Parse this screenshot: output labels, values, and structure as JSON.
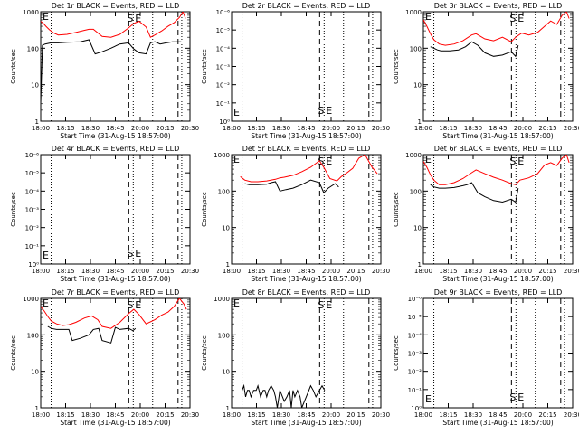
{
  "chart_data": [
    {
      "type": "line",
      "title": "Det 1r BLACK = Events, RED = LLD",
      "xlabel": "Start Time (31-Aug-15 18:57:00)",
      "ylabel": "Counts/sec",
      "y_scale": "log",
      "ylim": [
        1,
        1000
      ],
      "y_ticks": [
        "1",
        "10",
        "100",
        "1000"
      ],
      "x_ticks": [
        "18:00",
        "18:15",
        "18:30",
        "18:45",
        "20:00",
        "20:15",
        "20:30"
      ],
      "markers": {
        "E_left": "E",
        "S": "S",
        "E": "E"
      },
      "series": [
        {
          "color": "#000000",
          "x": [
            19.0,
            19.02,
            19.05,
            19.08,
            19.12,
            19.15,
            19.2,
            19.3,
            19.45,
            19.55,
            19.62,
            19.7,
            19.8,
            19.9,
            20.0,
            20.06,
            20.12,
            20.2,
            20.25,
            20.3,
            20.36,
            20.43,
            20.5,
            20.6
          ],
          "y": [
            3,
            120,
            130,
            135,
            140,
            140,
            140,
            145,
            150,
            170,
            70,
            80,
            100,
            130,
            140,
            95,
            75,
            70,
            140,
            150,
            130,
            140,
            150,
            150
          ]
        },
        {
          "color": "#ff0000",
          "x": [
            19.0,
            19.03,
            19.06,
            19.1,
            19.15,
            19.2,
            19.3,
            19.4,
            19.5,
            19.55,
            19.6,
            19.7,
            19.8,
            19.9,
            20.0,
            20.06,
            20.12,
            20.2,
            20.25,
            20.3,
            20.38,
            20.45,
            20.52,
            20.58,
            20.62,
            20.65
          ],
          "y": [
            550,
            480,
            400,
            320,
            260,
            230,
            240,
            270,
            310,
            330,
            330,
            210,
            200,
            240,
            360,
            480,
            550,
            380,
            200,
            230,
            300,
            400,
            500,
            700,
            1000,
            650
          ]
        }
      ]
    },
    {
      "type": "line",
      "title": "Det 2r BLACK = Events, RED = LLD",
      "xlabel": "Start Time (31-Aug-15 18:57:00)",
      "ylabel": "Counts/sec",
      "y_scale": "log",
      "ylim": [
        1,
        1e-06
      ],
      "y_ticks": [
        "10⁰",
        "10⁻¹",
        "10⁻²",
        "10⁻³",
        "10⁻⁴",
        "10⁻⁵",
        "10⁻⁶"
      ],
      "x_ticks": [
        "18:00",
        "18:15",
        "18:30",
        "18:45",
        "20:00",
        "20:15",
        "20:30"
      ],
      "markers": {
        "E_left": "E",
        "S": "S",
        "E": "E"
      },
      "series": []
    },
    {
      "type": "line",
      "title": "Det 3r BLACK = Events, RED = LLD",
      "xlabel": "Start Time (31-Aug-15 18:57:00)",
      "ylabel": "Counts/sec",
      "y_scale": "log",
      "ylim": [
        1,
        1000
      ],
      "y_ticks": [
        "1",
        "10",
        "100",
        "1000"
      ],
      "x_ticks": [
        "18:00",
        "18:15",
        "18:30",
        "18:45",
        "20:00",
        "20:15",
        "20:30"
      ],
      "markers": {
        "E_left": "E",
        "S": "S",
        "E": "E"
      },
      "series": [
        {
          "color": "#000000",
          "x": [
            19.08,
            19.12,
            19.16,
            19.2,
            19.3,
            19.4,
            19.48,
            19.55,
            19.62,
            19.7,
            19.8,
            19.9,
            20.0,
            20.05,
            20.08
          ],
          "y": [
            110,
            100,
            90,
            85,
            85,
            90,
            110,
            150,
            120,
            75,
            60,
            65,
            80,
            60,
            120
          ]
        },
        {
          "color": "#ff0000",
          "x": [
            19.0,
            19.04,
            19.08,
            19.12,
            19.18,
            19.25,
            19.35,
            19.45,
            19.55,
            19.6,
            19.7,
            19.8,
            19.9,
            20.0,
            20.05,
            20.12,
            20.2,
            20.3,
            20.38,
            20.45,
            20.52,
            20.58,
            20.63,
            20.66
          ],
          "y": [
            600,
            400,
            250,
            170,
            130,
            120,
            130,
            160,
            230,
            250,
            180,
            160,
            200,
            150,
            200,
            260,
            230,
            270,
            400,
            560,
            450,
            800,
            1000,
            650
          ]
        }
      ]
    },
    {
      "type": "line",
      "title": "Det 4r BLACK = Events, RED = LLD",
      "xlabel": "Start Time (31-Aug-15 18:57:00)",
      "ylabel": "Counts/sec",
      "y_scale": "log",
      "ylim": [
        1,
        1e-06
      ],
      "y_ticks": [
        "10⁰",
        "10⁻¹",
        "10⁻²",
        "10⁻³",
        "10⁻⁴",
        "10⁻⁵",
        "10⁻⁶"
      ],
      "x_ticks": [
        "18:00",
        "18:15",
        "18:30",
        "18:45",
        "20:00",
        "20:15",
        "20:30"
      ],
      "markers": {
        "E_left": "E",
        "S": "S",
        "E": "E"
      },
      "series": []
    },
    {
      "type": "line",
      "title": "Det 5r BLACK = Events, RED = LLD",
      "xlabel": "Start Time (31-Aug-15 18:57:00)",
      "ylabel": "Counts/sec",
      "y_scale": "log",
      "ylim": [
        1,
        1000
      ],
      "y_ticks": [
        "1",
        "10",
        "100",
        "1000"
      ],
      "x_ticks": [
        "18:00",
        "18:15",
        "18:30",
        "18:45",
        "20:00",
        "20:15",
        "20:30"
      ],
      "markers": {
        "E_left": "E",
        "S": "S",
        "E": "E"
      },
      "series": [
        {
          "color": "#000000",
          "x": [
            19.15,
            19.2,
            19.3,
            19.4,
            19.45,
            19.5,
            19.55,
            19.62,
            19.7,
            19.8,
            19.9,
            20.0,
            20.05,
            20.1,
            20.18,
            20.22
          ],
          "y": [
            160,
            150,
            150,
            155,
            170,
            180,
            100,
            110,
            120,
            150,
            200,
            170,
            90,
            120,
            160,
            130
          ]
        },
        {
          "color": "#ff0000",
          "x": [
            19.1,
            19.15,
            19.22,
            19.3,
            19.4,
            19.5,
            19.55,
            19.6,
            19.7,
            19.8,
            19.9,
            20.0,
            20.05,
            20.12,
            20.2,
            20.25,
            20.3,
            20.38,
            20.45,
            20.52,
            20.6,
            20.66
          ],
          "y": [
            250,
            200,
            180,
            180,
            190,
            210,
            230,
            240,
            270,
            340,
            450,
            680,
            450,
            220,
            190,
            250,
            300,
            420,
            800,
            1000,
            450,
            300
          ]
        }
      ]
    },
    {
      "type": "line",
      "title": "Det 6r BLACK = Events, RED = LLD",
      "xlabel": "Start Time (31-Aug-15 18:57:00)",
      "ylabel": "Counts/sec",
      "y_scale": "log",
      "ylim": [
        1,
        1000
      ],
      "y_ticks": [
        "1",
        "10",
        "100",
        "1000"
      ],
      "x_ticks": [
        "18:00",
        "18:15",
        "18:30",
        "18:45",
        "20:00",
        "20:15",
        "20:30"
      ],
      "markers": {
        "E_left": "E",
        "S": "S",
        "E": "E"
      },
      "series": [
        {
          "color": "#000000",
          "x": [
            19.08,
            19.12,
            19.18,
            19.25,
            19.35,
            19.45,
            19.5,
            19.55,
            19.62,
            19.7,
            19.8,
            19.9,
            20.0,
            20.05,
            20.08
          ],
          "y": [
            150,
            130,
            120,
            120,
            125,
            140,
            150,
            170,
            90,
            70,
            55,
            50,
            60,
            50,
            120
          ]
        },
        {
          "color": "#ff0000",
          "x": [
            19.0,
            19.04,
            19.08,
            19.12,
            19.18,
            19.25,
            19.35,
            19.45,
            19.55,
            19.6,
            19.7,
            19.8,
            19.9,
            20.0,
            20.05,
            20.1,
            20.2,
            20.3,
            20.38,
            20.45,
            20.52,
            20.58,
            20.63,
            20.66
          ],
          "y": [
            650,
            450,
            280,
            200,
            150,
            150,
            170,
            220,
            320,
            380,
            300,
            240,
            200,
            160,
            150,
            200,
            230,
            300,
            520,
            600,
            500,
            800,
            1000,
            600
          ]
        }
      ]
    },
    {
      "type": "line",
      "title": "Det 7r BLACK = Events, RED = LLD",
      "xlabel": "Start Time (31-Aug-15 18:57:00)",
      "ylabel": "Counts/sec",
      "y_scale": "log",
      "ylim": [
        1,
        1000
      ],
      "y_ticks": [
        "1",
        "10",
        "100",
        "1000"
      ],
      "x_ticks": [
        "18:00",
        "18:15",
        "18:30",
        "18:45",
        "20:00",
        "20:15",
        "20:30"
      ],
      "markers": {
        "E_left": "E",
        "S": "S",
        "E": "E"
      },
      "series": [
        {
          "color": "#000000",
          "x": [
            19.08,
            19.12,
            19.18,
            19.25,
            19.32,
            19.36,
            19.45,
            19.55,
            19.6,
            19.66,
            19.7,
            19.8,
            19.85,
            19.9,
            20.0,
            20.05,
            20.08
          ],
          "y": [
            170,
            150,
            140,
            140,
            140,
            70,
            80,
            100,
            140,
            150,
            70,
            60,
            160,
            140,
            150,
            130,
            150
          ]
        },
        {
          "color": "#ff0000",
          "x": [
            19.0,
            19.04,
            19.08,
            19.12,
            19.18,
            19.25,
            19.32,
            19.4,
            19.5,
            19.58,
            19.65,
            19.7,
            19.8,
            19.9,
            20.0,
            20.06,
            20.12,
            20.2,
            20.3,
            20.38,
            20.45,
            20.52,
            20.58,
            20.63,
            20.66
          ],
          "y": [
            600,
            450,
            320,
            240,
            200,
            180,
            190,
            220,
            290,
            330,
            260,
            170,
            150,
            220,
            380,
            500,
            360,
            200,
            260,
            350,
            420,
            600,
            1000,
            700,
            500
          ]
        }
      ]
    },
    {
      "type": "line",
      "title": "Det 8r BLACK = Events, RED = LLD",
      "xlabel": "Start Time (31-Aug-15 18:57:00)",
      "ylabel": "Counts/sec",
      "y_scale": "log",
      "ylim": [
        1,
        1000
      ],
      "y_ticks": [
        "1",
        "10",
        "100",
        "1000"
      ],
      "x_ticks": [
        "18:00",
        "18:15",
        "18:30",
        "18:45",
        "20:00",
        "20:15",
        "20:30"
      ],
      "markers": {
        "E_left": "E",
        "S": "S",
        "E": "E"
      },
      "series": [
        {
          "color": "#000000",
          "x": [
            19.12,
            19.14,
            19.16,
            19.18,
            19.2,
            19.22,
            19.25,
            19.28,
            19.3,
            19.33,
            19.36,
            19.38,
            19.4,
            19.42,
            19.45,
            19.48,
            19.5,
            19.52,
            19.55,
            19.58,
            19.6,
            19.63,
            19.66,
            19.68,
            19.7,
            19.72,
            19.75,
            19.78,
            19.8,
            19.85,
            19.88,
            19.9,
            19.93,
            19.96,
            20.0,
            20.03,
            20.06
          ],
          "y": [
            3,
            4,
            2,
            3,
            3,
            2,
            3,
            3,
            4,
            2,
            3,
            3,
            2,
            3,
            4,
            3,
            2,
            1,
            3,
            2,
            1.5,
            2,
            3,
            1,
            3,
            2,
            3,
            2,
            1,
            2,
            3,
            4,
            3,
            2,
            3,
            4,
            3
          ]
        }
      ]
    },
    {
      "type": "line",
      "title": "Det 9r BLACK = Events, RED = LLD",
      "xlabel": "Start Time (31-Aug-15 18:57:00)",
      "ylabel": "Counts/sec",
      "y_scale": "log",
      "ylim": [
        1,
        1e-06
      ],
      "y_ticks": [
        "10⁰",
        "10⁻¹",
        "10⁻²",
        "10⁻³",
        "10⁻⁴",
        "10⁻⁵",
        "10⁻⁶"
      ],
      "x_ticks": [
        "18:00",
        "18:15",
        "18:30",
        "18:45",
        "20:00",
        "20:15",
        "20:30"
      ],
      "markers": {
        "E_left": "E",
        "S": "S",
        "E": "E"
      },
      "series": []
    }
  ]
}
